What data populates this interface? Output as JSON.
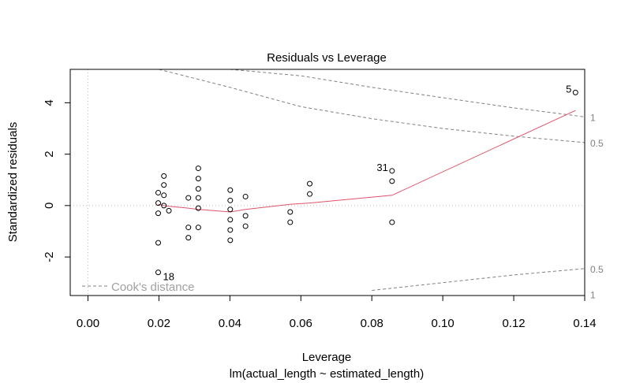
{
  "chart_data": {
    "type": "scatter",
    "title": "Residuals vs Leverage",
    "xlabel": "Leverage",
    "sublabel": "lm(actual_length ~ estimated_length)",
    "ylabel": "Standardized residuals",
    "xlim": [
      -0.005,
      0.14
    ],
    "ylim": [
      -3.5,
      5.3
    ],
    "xticks": [
      0.0,
      0.02,
      0.04,
      0.06,
      0.08,
      0.1,
      0.12,
      0.14
    ],
    "xtick_labels": [
      "0.00",
      "0.02",
      "0.04",
      "0.06",
      "0.08",
      "0.10",
      "0.12",
      "0.14"
    ],
    "yticks": [
      -2,
      0,
      2,
      4
    ],
    "ytick_labels": [
      "-2",
      "0",
      "2",
      "4"
    ],
    "grid": false,
    "points": [
      {
        "x": 0.0198,
        "y": 0.5
      },
      {
        "x": 0.0198,
        "y": 0.1
      },
      {
        "x": 0.0198,
        "y": -0.3
      },
      {
        "x": 0.0198,
        "y": -1.45
      },
      {
        "x": 0.0198,
        "y": -2.6
      },
      {
        "x": 0.0214,
        "y": 1.15
      },
      {
        "x": 0.0214,
        "y": 0.8
      },
      {
        "x": 0.0214,
        "y": 0.4
      },
      {
        "x": 0.0214,
        "y": 0.0
      },
      {
        "x": 0.0228,
        "y": -0.2
      },
      {
        "x": 0.0283,
        "y": 0.3
      },
      {
        "x": 0.0283,
        "y": -0.85
      },
      {
        "x": 0.0283,
        "y": -1.25
      },
      {
        "x": 0.0311,
        "y": 1.45
      },
      {
        "x": 0.0311,
        "y": 1.05
      },
      {
        "x": 0.0311,
        "y": 0.65
      },
      {
        "x": 0.0311,
        "y": 0.3
      },
      {
        "x": 0.0311,
        "y": -0.1
      },
      {
        "x": 0.0311,
        "y": -0.85
      },
      {
        "x": 0.0401,
        "y": 0.6
      },
      {
        "x": 0.0401,
        "y": 0.2
      },
      {
        "x": 0.0401,
        "y": -0.15
      },
      {
        "x": 0.0401,
        "y": -0.55
      },
      {
        "x": 0.0401,
        "y": -0.95
      },
      {
        "x": 0.0401,
        "y": -1.35
      },
      {
        "x": 0.0444,
        "y": 0.35
      },
      {
        "x": 0.0444,
        "y": -0.4
      },
      {
        "x": 0.0444,
        "y": -0.8
      },
      {
        "x": 0.057,
        "y": -0.25
      },
      {
        "x": 0.057,
        "y": -0.65
      },
      {
        "x": 0.0625,
        "y": 0.85
      },
      {
        "x": 0.0625,
        "y": 0.45
      },
      {
        "x": 0.0857,
        "y": 1.35
      },
      {
        "x": 0.0857,
        "y": 0.95
      },
      {
        "x": 0.0857,
        "y": -0.65
      },
      {
        "x": 0.1374,
        "y": 4.4
      }
    ],
    "point_labels": [
      {
        "x": 0.0857,
        "y": 1.35,
        "text": "31",
        "side": "left"
      },
      {
        "x": 0.1374,
        "y": 4.4,
        "text": "5",
        "side": "left"
      },
      {
        "x": 0.0198,
        "y": -2.6,
        "text": "18",
        "side": "right"
      }
    ],
    "smooth_line": {
      "name": "",
      "color": "#DF536B",
      "x": [
        0.0198,
        0.0214,
        0.0228,
        0.0283,
        0.0311,
        0.0401,
        0.0444,
        0.057,
        0.0625,
        0.0857,
        0.1374
      ],
      "y": [
        0.05,
        0.0,
        -0.03,
        -0.1,
        -0.15,
        -0.25,
        -0.15,
        0.05,
        0.1,
        0.4,
        3.7
      ]
    },
    "cooks_contours": [
      {
        "level": "0.5",
        "x": [
          0.02,
          0.04,
          0.06,
          0.08,
          0.1,
          0.12,
          0.14
        ],
        "y": [
          5.3,
          4.6,
          3.85,
          3.38,
          3.0,
          2.7,
          2.45
        ]
      },
      {
        "level": "1",
        "x": [
          0.04,
          0.06,
          0.08,
          0.1,
          0.12,
          0.14
        ],
        "y": [
          5.3,
          5.05,
          4.6,
          4.2,
          3.8,
          3.45
        ]
      },
      {
        "level": "0.5",
        "x": [
          0.08,
          0.1,
          0.12,
          0.14
        ],
        "y": [
          -3.3,
          -3.0,
          -2.7,
          -2.45
        ]
      },
      {
        "level": "1",
        "x": [
          0.14
        ],
        "y": [
          -3.45
        ]
      }
    ],
    "contour_right_labels": [
      {
        "text": "1",
        "y": 3.45
      },
      {
        "text": "0.5",
        "y": 2.45
      },
      {
        "text": "0.5",
        "y": -2.45
      },
      {
        "text": "1",
        "y": -3.45
      }
    ],
    "reference_lines": {
      "h": 0,
      "v": 0
    },
    "legend": {
      "label": "Cook's distance",
      "position": "bottom-left"
    },
    "colors": {
      "points": "#000000",
      "smooth": "#DF536B",
      "contours": "#808080",
      "reference": "#BEBEBE"
    }
  }
}
